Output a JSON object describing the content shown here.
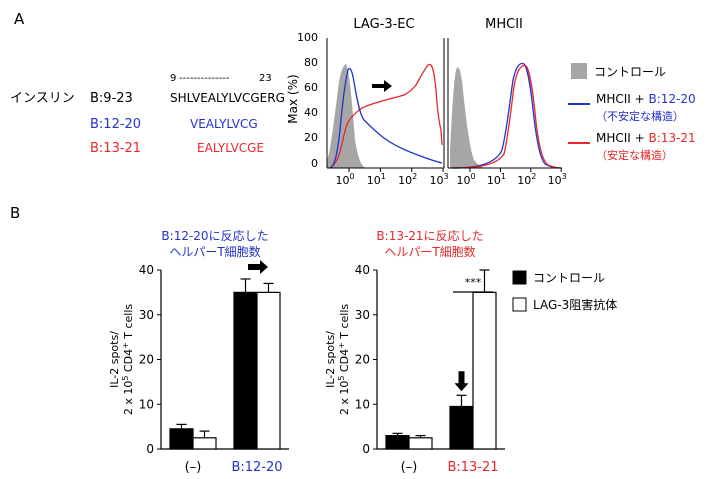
{
  "panel_labels": {
    "a": "A",
    "b": "B"
  },
  "insulin": {
    "label": "インスリン",
    "peptides": [
      {
        "name": "B:9-23",
        "sequence": "SHLVEALYLVCGERG",
        "color": "#000000"
      },
      {
        "name": "B:12-20",
        "sequence": "VEALYLVCG",
        "color": "#2233cc"
      },
      {
        "name": "B:13-21",
        "sequence": "EALYLVCGE",
        "color": "#e8262b"
      }
    ],
    "ruler": {
      "start": "9",
      "dashes": "--------------",
      "end": "23"
    }
  },
  "colors": {
    "blue": "#2233cc",
    "red": "#e8262b",
    "gray": "#a6a6a6",
    "black": "#000000"
  },
  "histograms": {
    "ylabel": "Max (%)",
    "yticks": [
      "0",
      "20",
      "40",
      "60",
      "80",
      "100"
    ],
    "xticks": [
      {
        "b": "10",
        "e": "0"
      },
      {
        "b": "10",
        "e": "1"
      },
      {
        "b": "10",
        "e": "2"
      },
      {
        "b": "10",
        "e": "3"
      }
    ],
    "panels": [
      {
        "title": "LAG-3-EC",
        "arrow": true
      },
      {
        "title": "MHCII",
        "arrow": false
      }
    ]
  },
  "legend_top": {
    "items": [
      {
        "kind": "box",
        "text": "コントロール"
      },
      {
        "kind": "line",
        "color": "#2233cc",
        "line1_a": "MHCII + ",
        "line1_b": "B:12-20",
        "line2": "（不安定な構造）"
      },
      {
        "kind": "line",
        "color": "#e8262b",
        "line1_a": "MHCII + ",
        "line1_b": "B:13-21",
        "line2": "（安定な構造）"
      }
    ]
  },
  "legend_bottom": {
    "items": [
      {
        "fill": "#000000",
        "text": "コントロール"
      },
      {
        "fill": "#ffffff",
        "text": "LAG-3阻害抗体"
      }
    ]
  },
  "chart_data": [
    {
      "type": "bar",
      "title": "B:12-20に反応した\nヘルパーT細胞数",
      "title_color": "#2233cc",
      "ylabel": "IL-2 spots/\n2 x 10^5 CD4+ T cells",
      "ylim": [
        0,
        40
      ],
      "yticks": [
        0,
        10,
        20,
        30,
        40
      ],
      "categories": [
        "(–)",
        "B:12-20"
      ],
      "category_colors": [
        "#000000",
        "#2233cc"
      ],
      "series": [
        {
          "name": "コントロール",
          "values": [
            4.5,
            35
          ],
          "errors": [
            1,
            3
          ]
        },
        {
          "name": "LAG-3阻害抗体",
          "values": [
            2.5,
            35
          ],
          "errors": [
            1.5,
            2
          ]
        }
      ],
      "annotations": [
        {
          "type": "arrow-right",
          "category": 1
        }
      ]
    },
    {
      "type": "bar",
      "title": "B:13-21に反応した\nヘルパーT細胞数",
      "title_color": "#e8262b",
      "ylabel": "IL-2 spots/\n2 x 10^5 CD4+ T cells",
      "ylim": [
        0,
        40
      ],
      "yticks": [
        0,
        10,
        20,
        30,
        40
      ],
      "categories": [
        "(–)",
        "B:13-21"
      ],
      "category_colors": [
        "#000000",
        "#e8262b"
      ],
      "series": [
        {
          "name": "コントロール",
          "values": [
            3,
            9.5
          ],
          "errors": [
            0.5,
            2.5
          ]
        },
        {
          "name": "LAG-3阻害抗体",
          "values": [
            2.5,
            35
          ],
          "errors": [
            0.5,
            5
          ]
        }
      ],
      "annotations": [
        {
          "type": "arrow-down",
          "category": 1
        },
        {
          "type": "significance",
          "text": "***"
        }
      ]
    }
  ]
}
